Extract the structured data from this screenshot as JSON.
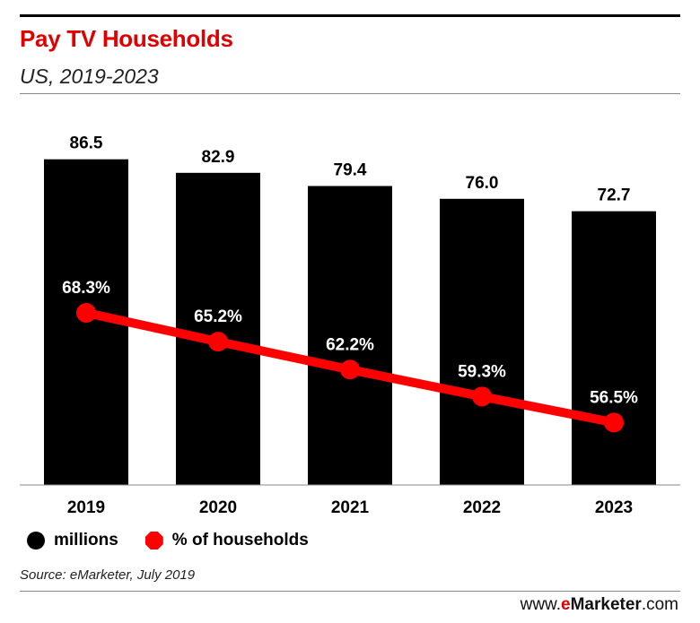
{
  "header": {
    "title": "Pay TV Households",
    "subtitle": "US, 2019-2023"
  },
  "colors": {
    "title": "#e00000",
    "bar": "#000000",
    "line": "#ff0000",
    "label_on_bar": "#ffffff"
  },
  "chart_data": {
    "type": "bar",
    "categories": [
      "2019",
      "2020",
      "2021",
      "2022",
      "2023"
    ],
    "series": [
      {
        "name": "millions",
        "type": "bar",
        "values": [
          86.5,
          82.9,
          79.4,
          76.0,
          72.7
        ],
        "labels": [
          "86.5",
          "82.9",
          "79.4",
          "76.0",
          "72.7"
        ]
      },
      {
        "name": "% of households",
        "type": "line",
        "values": [
          68.3,
          65.2,
          62.2,
          59.3,
          56.5
        ],
        "labels": [
          "68.3%",
          "65.2%",
          "62.2%",
          "59.3%",
          "56.5%"
        ]
      }
    ],
    "ylim_bar": [
      0,
      100
    ],
    "ylim_line": [
      0,
      100
    ],
    "grid": false,
    "legend_position": "bottom-left"
  },
  "legend": {
    "millions_label": "millions",
    "pct_label": "% of households"
  },
  "footer": {
    "source": "Source: eMarketer, July 2019",
    "brand_prefix": "www.",
    "brand_e": "e",
    "brand_name": "Marketer",
    "brand_suffix": ".com"
  }
}
